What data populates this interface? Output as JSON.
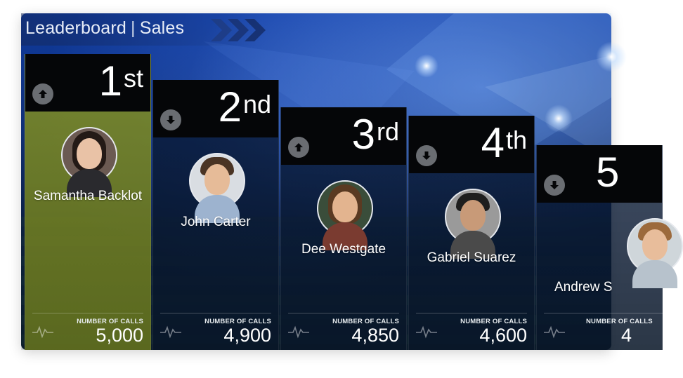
{
  "header": {
    "title": "Leaderboard",
    "subtitle": "Sales"
  },
  "colors": {
    "first_place_card": "#7e8c28",
    "rank_box": "#050608",
    "arrow_circle": "#6a6d72"
  },
  "stat_label": "NUMBER OF CALLS",
  "leaders": [
    {
      "rank": "1",
      "suffix": "st",
      "trend": "up",
      "trend_icon": "arrow-up-icon",
      "name": "Samantha Backlot",
      "calls": "5,000"
    },
    {
      "rank": "2",
      "suffix": "nd",
      "trend": "down",
      "trend_icon": "arrow-down-icon",
      "name": "John Carter",
      "calls": "4,900"
    },
    {
      "rank": "3",
      "suffix": "rd",
      "trend": "up",
      "trend_icon": "arrow-up-icon",
      "name": "Dee Westgate",
      "calls": "4,850"
    },
    {
      "rank": "4",
      "suffix": "th",
      "trend": "down",
      "trend_icon": "arrow-down-icon",
      "name": "Gabriel Suarez",
      "calls": "4,600"
    },
    {
      "rank": "5",
      "suffix": "",
      "trend": "down",
      "trend_icon": "arrow-down-icon",
      "name": "Andrew S",
      "calls": "4"
    }
  ]
}
